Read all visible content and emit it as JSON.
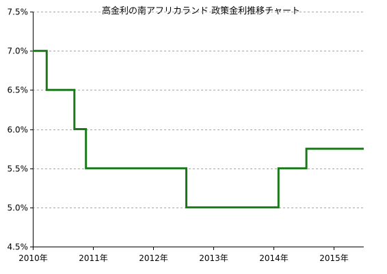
{
  "chart_data": {
    "type": "line",
    "title": "高金利の南アフリカランド 政策金利推移チャート",
    "xlabel": "",
    "ylabel": "",
    "x_tick_labels": [
      "2010年",
      "2011年",
      "2012年",
      "2013年",
      "2014年",
      "2015年"
    ],
    "x_tick_years": [
      2010,
      2011,
      2012,
      2013,
      2014,
      2015
    ],
    "xlim": [
      "2010-01-01",
      "2015-07-01"
    ],
    "y_tick_labels": [
      "4.5%",
      "5.0%",
      "5.5%",
      "6.0%",
      "6.5%",
      "7.0%",
      "7.5%"
    ],
    "ylim": [
      4.5,
      7.5
    ],
    "y_ticks": [
      4.5,
      5.0,
      5.5,
      6.0,
      6.5,
      7.0,
      7.5
    ],
    "grid": "horizontal dashed",
    "line_style": "step",
    "series": [
      {
        "color": "#1a7a1a",
        "points": [
          {
            "date": "2010-01-01",
            "rate": 7.0
          },
          {
            "date": "2010-03-26",
            "rate": 6.5
          },
          {
            "date": "2010-09-10",
            "rate": 6.0
          },
          {
            "date": "2010-11-19",
            "rate": 5.5
          },
          {
            "date": "2012-07-20",
            "rate": 5.0
          },
          {
            "date": "2014-01-30",
            "rate": 5.5
          },
          {
            "date": "2014-07-18",
            "rate": 5.75
          },
          {
            "date": "2015-07-01",
            "rate": 5.75
          }
        ]
      }
    ]
  },
  "colors": {
    "axis": "#000000",
    "grid": "#a6a6a6",
    "series": "#1a7a1a"
  }
}
